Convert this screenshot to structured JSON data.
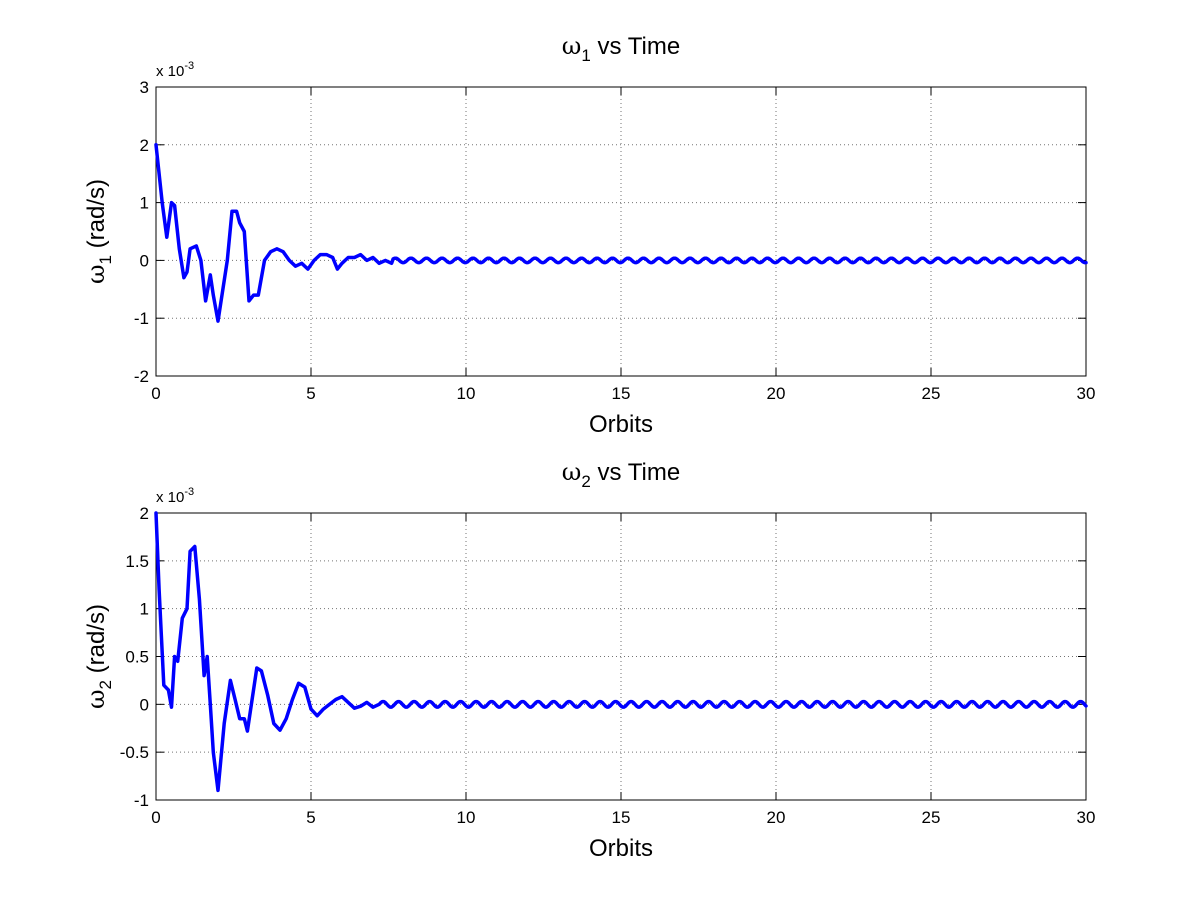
{
  "chart_data": [
    {
      "type": "line",
      "title": {
        "symbol": "ω",
        "subscript": "1",
        "text": " vs Time"
      },
      "xlabel": "Orbits",
      "ylabel": {
        "symbol": "ω",
        "subscript": "1",
        "text": " (rad/s)"
      },
      "y_exponent": {
        "prefix": "x 10",
        "power": "-3"
      },
      "xlim": [
        0,
        30
      ],
      "ylim": [
        -2,
        3
      ],
      "xticks": [
        0,
        5,
        10,
        15,
        20,
        25,
        30
      ],
      "yticks": [
        -2,
        -1,
        0,
        1,
        2,
        3
      ],
      "ytick_labels": [
        "-2",
        "-1",
        "0",
        "1",
        "2",
        "3"
      ],
      "grid": true,
      "line_color": "#0000ff",
      "series": [
        {
          "x": [
            0.0,
            0.2,
            0.35,
            0.5,
            0.6,
            0.75,
            0.9,
            1.0,
            1.1,
            1.3,
            1.45,
            1.6,
            1.75,
            1.85,
            2.0,
            2.1,
            2.3,
            2.45,
            2.6,
            2.7,
            2.85,
            3.0,
            3.15,
            3.3,
            3.5,
            3.7,
            3.9,
            4.1,
            4.3,
            4.5,
            4.7,
            4.9,
            5.1,
            5.3,
            5.5,
            5.7,
            5.85,
            6.0,
            6.2,
            6.4,
            6.6,
            6.8,
            7.0,
            7.2,
            7.4,
            7.6
          ],
          "values": [
            2.0,
            1.0,
            0.4,
            1.0,
            0.95,
            0.2,
            -0.3,
            -0.2,
            0.2,
            0.25,
            0.0,
            -0.7,
            -0.25,
            -0.6,
            -1.05,
            -0.7,
            0.0,
            0.85,
            0.85,
            0.65,
            0.5,
            -0.7,
            -0.6,
            -0.6,
            0.0,
            0.15,
            0.2,
            0.15,
            0.0,
            -0.1,
            -0.05,
            -0.15,
            0.0,
            0.1,
            0.1,
            0.05,
            -0.15,
            -0.05,
            0.05,
            0.05,
            0.1,
            0.0,
            0.05,
            -0.05,
            0.0,
            -0.05
          ]
        }
      ],
      "oscillation": {
        "start": 7.6,
        "end": 30,
        "amplitude": 0.04,
        "period": 0.5
      }
    },
    {
      "type": "line",
      "title": {
        "symbol": "ω",
        "subscript": "2",
        "text": " vs Time"
      },
      "xlabel": "Orbits",
      "ylabel": {
        "symbol": "ω",
        "subscript": "2",
        "text": " (rad/s)"
      },
      "y_exponent": {
        "prefix": "x 10",
        "power": "-3"
      },
      "xlim": [
        0,
        30
      ],
      "ylim": [
        -1,
        2
      ],
      "xticks": [
        0,
        5,
        10,
        15,
        20,
        25,
        30
      ],
      "yticks": [
        -1,
        -0.5,
        0,
        0.5,
        1,
        1.5,
        2
      ],
      "ytick_labels": [
        "-1",
        "-0.5",
        "0",
        "0.5",
        "1",
        "1.5",
        "2"
      ],
      "grid": true,
      "line_color": "#0000ff",
      "series": [
        {
          "x": [
            0.0,
            0.1,
            0.25,
            0.4,
            0.5,
            0.6,
            0.7,
            0.85,
            1.0,
            1.1,
            1.25,
            1.4,
            1.55,
            1.65,
            1.75,
            1.85,
            2.0,
            2.2,
            2.4,
            2.55,
            2.7,
            2.85,
            2.95,
            3.1,
            3.25,
            3.4,
            3.6,
            3.8,
            4.0,
            4.2,
            4.4,
            4.6,
            4.8,
            5.0,
            5.2,
            5.4,
            5.6,
            5.8,
            6.0,
            6.2,
            6.4,
            6.6,
            6.8,
            7.0,
            7.2
          ],
          "values": [
            2.0,
            1.2,
            0.2,
            0.15,
            -0.03,
            0.5,
            0.45,
            0.9,
            1.0,
            1.6,
            1.65,
            1.1,
            0.3,
            0.5,
            0.0,
            -0.5,
            -0.9,
            -0.2,
            0.25,
            0.05,
            -0.15,
            -0.15,
            -0.28,
            0.05,
            0.38,
            0.35,
            0.1,
            -0.2,
            -0.27,
            -0.15,
            0.05,
            0.22,
            0.18,
            -0.05,
            -0.12,
            -0.05,
            0.0,
            0.05,
            0.08,
            0.02,
            -0.04,
            -0.02,
            0.02,
            -0.03,
            0.0
          ],
          "oscillation_note": ""
        }
      ],
      "oscillation": {
        "start": 7.2,
        "end": 30,
        "amplitude": 0.03,
        "period": 0.5
      }
    }
  ]
}
